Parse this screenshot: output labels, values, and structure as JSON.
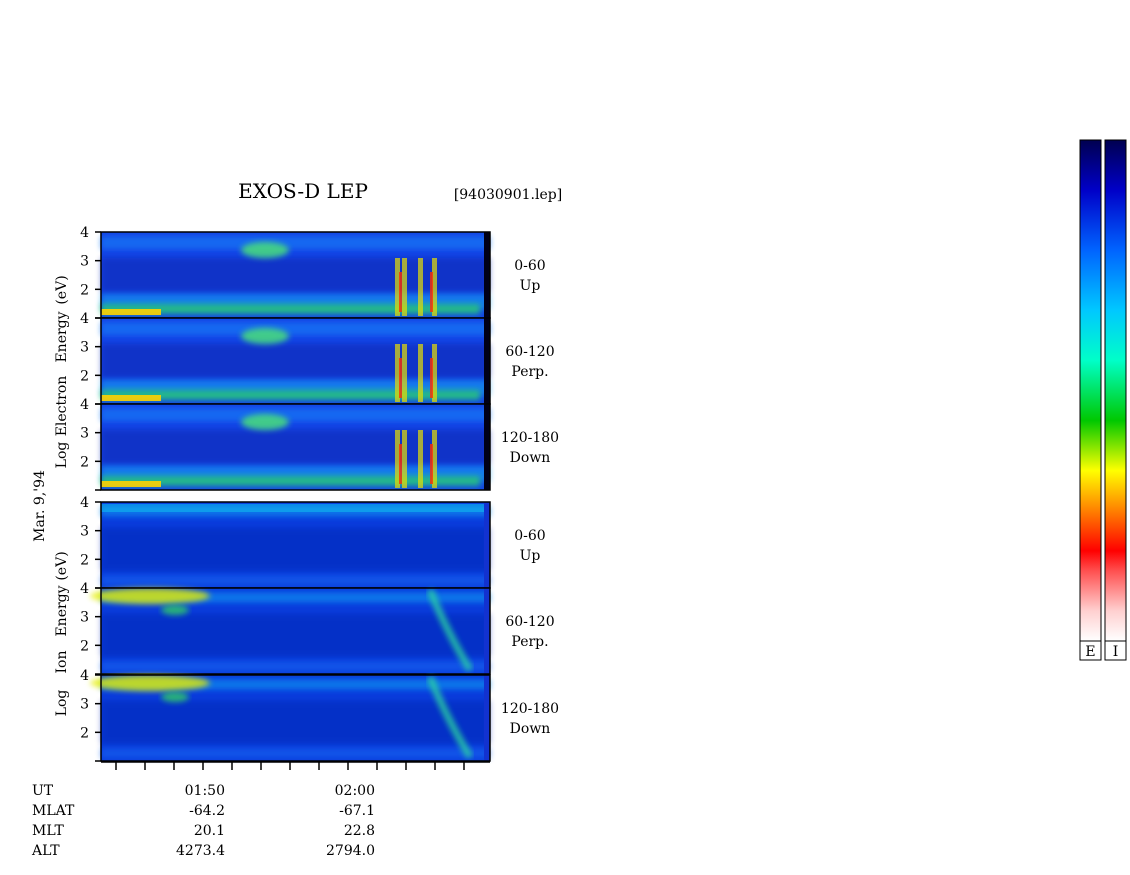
{
  "header": {
    "title": "EXOS-D LEP",
    "file": "[94030901.lep]"
  },
  "date_label": "Mar. 9,'94",
  "axis_titles": {
    "electron": [
      "Log",
      "Electron",
      "Energy",
      "(eV)"
    ],
    "ion": [
      "Log",
      "Ion",
      "Energy",
      "(eV)"
    ]
  },
  "colorbars": {
    "electron_key": "E",
    "ion_key": "I",
    "gradient": [
      "#ffffff",
      "#ffd0d0",
      "#ff5050",
      "#ff0000",
      "#ff8000",
      "#ffff00",
      "#00c800",
      "#00ffc8",
      "#00c8ff",
      "#0064ff",
      "#0000c8",
      "#000050"
    ]
  },
  "chart_data": {
    "type": "heatmap",
    "x_axis": {
      "ticks": [
        "01:50",
        "02:00"
      ]
    },
    "y_axis": {
      "scale": "log",
      "range": [
        1,
        4
      ],
      "ticks": [
        "4",
        "3",
        "2"
      ]
    },
    "panels": [
      {
        "species": "Electron",
        "pitch": "0-60",
        "direction": "Up"
      },
      {
        "species": "Electron",
        "pitch": "60-120",
        "direction": "Perp."
      },
      {
        "species": "Electron",
        "pitch": "120-180",
        "direction": "Down"
      },
      {
        "species": "Ion",
        "pitch": "0-60",
        "direction": "Up"
      },
      {
        "species": "Ion",
        "pitch": "60-120",
        "direction": "Perp."
      },
      {
        "species": "Ion",
        "pitch": "120-180",
        "direction": "Down"
      }
    ],
    "ephemeris": {
      "labels": [
        "UT",
        "MLAT",
        "MLT",
        "ALT"
      ],
      "columns": [
        {
          "UT": "01:50",
          "MLAT": "-64.2",
          "MLT": "20.1",
          "ALT": "4273.4"
        },
        {
          "UT": "02:00",
          "MLAT": "-67.1",
          "MLT": "22.8",
          "ALT": "2794.0"
        }
      ]
    }
  }
}
